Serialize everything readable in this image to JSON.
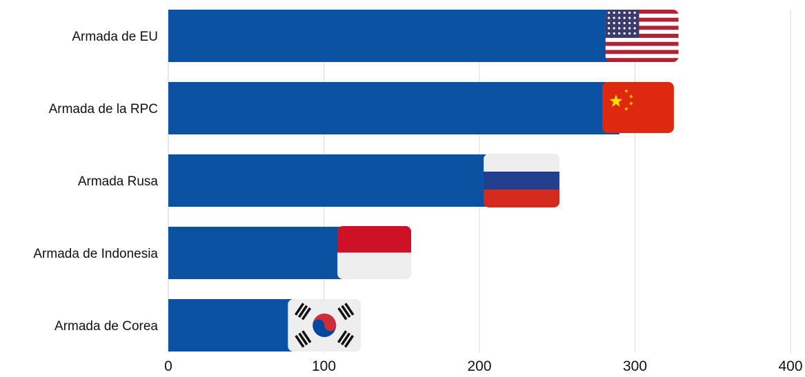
{
  "chart_data": {
    "type": "bar",
    "orientation": "horizontal",
    "title": "",
    "xlabel": "",
    "ylabel": "",
    "categories": [
      "Armada de EU",
      "Armada de la RPC",
      "Armada Rusa",
      "Armada de Indonesia",
      "Armada de Corea"
    ],
    "values": [
      293,
      290,
      216,
      114,
      99
    ],
    "xlim": [
      0,
      400
    ],
    "xticks": [
      0,
      100,
      200,
      300,
      400
    ],
    "grid": "vertical",
    "legend": "none",
    "bar_color": "#0a51a1",
    "flag_icons": [
      "usa-flag-icon",
      "china-flag-icon",
      "russia-flag-icon",
      "indonesia-flag-icon",
      "korea-flag-icon"
    ]
  },
  "colors": {
    "bar": "#0a51a1",
    "grid": "#d9d9d9",
    "axis": "#cfcfcf",
    "text": "#111111"
  }
}
